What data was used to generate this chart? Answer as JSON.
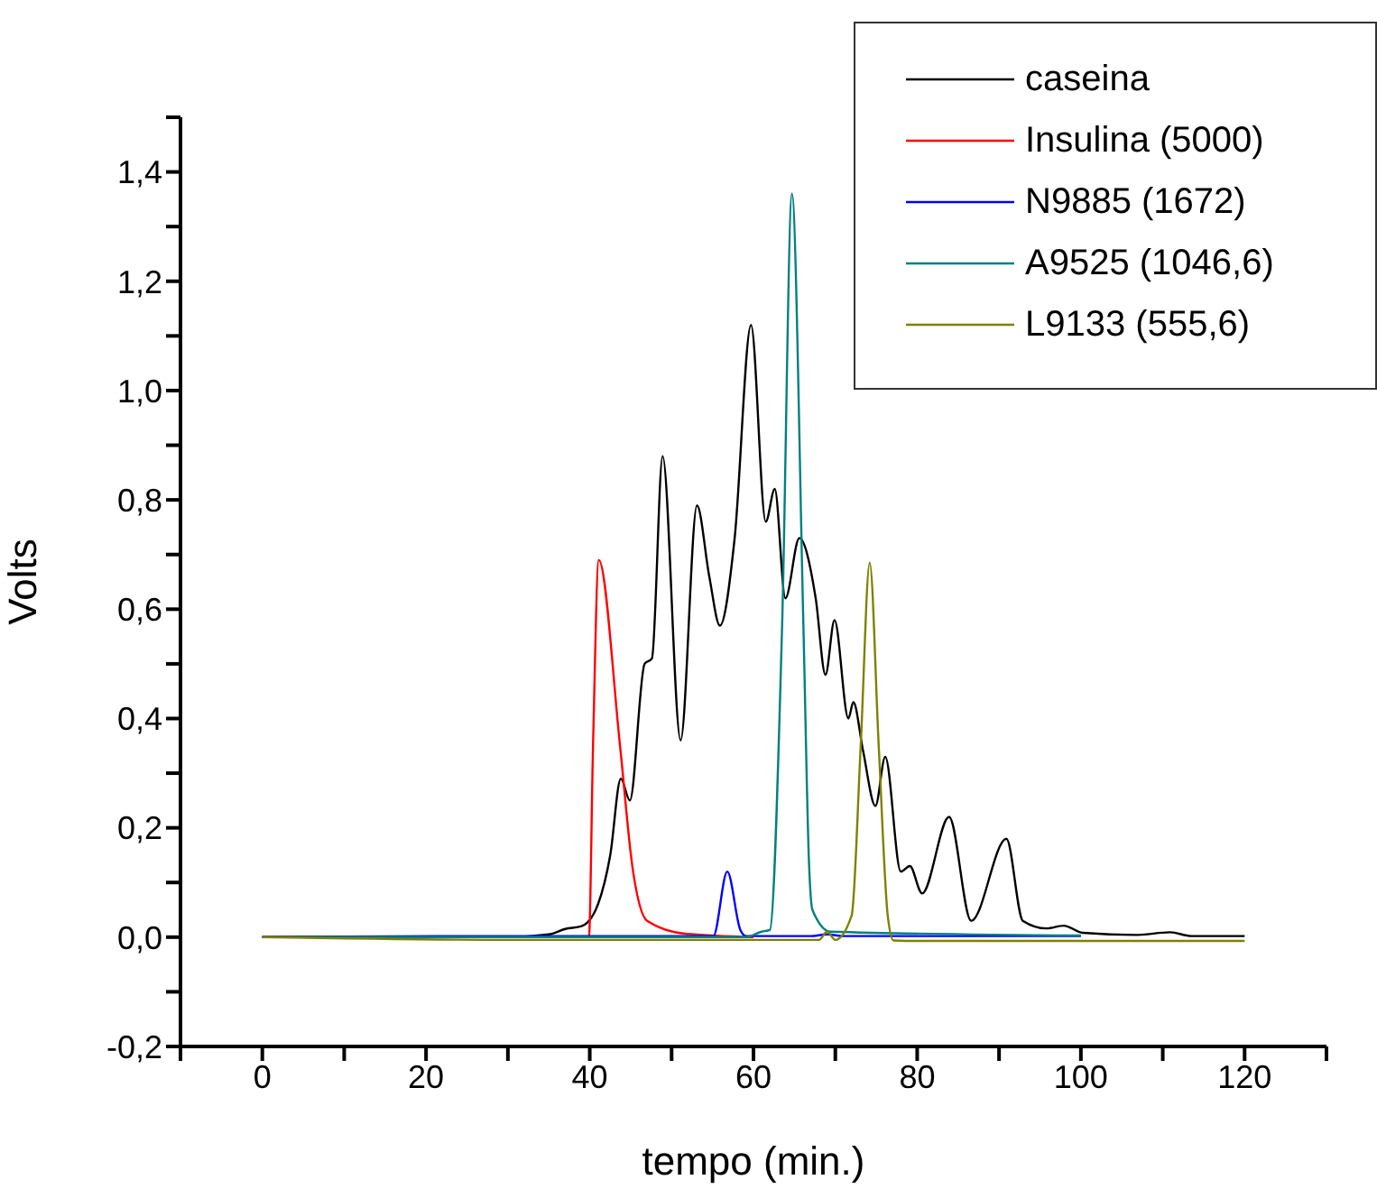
{
  "chart_data": {
    "type": "line",
    "xlabel": "tempo (min.)",
    "ylabel": "Volts",
    "xlim": [
      -10,
      130
    ],
    "ylim": [
      -0.2,
      1.5
    ],
    "xticks": [
      {
        "value": -10,
        "label": null
      },
      0,
      {
        "value": 10,
        "label": null
      },
      20,
      {
        "value": 30,
        "label": null
      },
      40,
      {
        "value": 50,
        "label": null
      },
      60,
      {
        "value": 70,
        "label": null
      },
      80,
      {
        "value": 90,
        "label": null
      },
      100,
      {
        "value": 110,
        "label": null
      },
      120,
      {
        "value": 130,
        "label": null
      }
    ],
    "yticks": [
      {
        "value": -0.2,
        "label": "-0,2"
      },
      {
        "value": -0.1,
        "label": null
      },
      {
        "value": 0,
        "label": "0,0"
      },
      {
        "value": 0.1,
        "label": null
      },
      {
        "value": 0.2,
        "label": "0,2"
      },
      {
        "value": 0.3,
        "label": null
      },
      {
        "value": 0.4,
        "label": "0,4"
      },
      {
        "value": 0.5,
        "label": null
      },
      {
        "value": 0.6,
        "label": "0,6"
      },
      {
        "value": 0.7,
        "label": null
      },
      {
        "value": 0.8,
        "label": "0,8"
      },
      {
        "value": 0.9,
        "label": null
      },
      {
        "value": 1.0,
        "label": "1,0"
      },
      {
        "value": 1.1,
        "label": null
      },
      {
        "value": 1.2,
        "label": "1,2"
      },
      {
        "value": 1.3,
        "label": null
      },
      {
        "value": 1.4,
        "label": "1,4"
      },
      {
        "value": 1.5,
        "label": null
      }
    ],
    "grid": false,
    "legend": "top right",
    "marker": "none",
    "line_style": "solid",
    "series": [
      {
        "name": "caseina",
        "color": "#000000",
        "x": [
          0,
          30,
          35,
          37,
          39,
          41,
          42.5,
          43.8,
          44.9,
          46.7,
          47.6,
          48.9,
          51.1,
          53.1,
          54.6,
          55.9,
          57.7,
          59.7,
          61.5,
          62.6,
          63.9,
          65.6,
          67.6,
          68.8,
          69.9,
          71.6,
          72.2,
          73.4,
          74.9,
          76.1,
          78.0,
          79.1,
          80.6,
          83.9,
          86.6,
          90.9,
          92.9,
          95.8,
          97.9,
          100.2,
          106.8,
          110.9,
          113.5,
          120
        ],
        "values": [
          0,
          0,
          0.005,
          0.015,
          0.02,
          0.06,
          0.15,
          0.29,
          0.25,
          0.5,
          0.51,
          0.88,
          0.36,
          0.79,
          0.66,
          0.57,
          0.73,
          1.12,
          0.76,
          0.82,
          0.62,
          0.73,
          0.62,
          0.48,
          0.58,
          0.4,
          0.43,
          0.34,
          0.24,
          0.33,
          0.12,
          0.13,
          0.08,
          0.22,
          0.03,
          0.18,
          0.03,
          0.016,
          0.021,
          0.008,
          0.004,
          0.009,
          0.002,
          0.002
        ]
      },
      {
        "name": "Insulina (5000)",
        "color": "#ff0000",
        "x": [
          0,
          39.9,
          40.4,
          41.1,
          43.7,
          45.2,
          47,
          51.8,
          60
        ],
        "values": [
          0,
          0,
          0.35,
          0.69,
          0.35,
          0.13,
          0.03,
          0.006,
          0
        ]
      },
      {
        "name": "N9885 (1672)",
        "color": "#0000ff",
        "x": [
          0,
          30,
          55.1,
          56.8,
          58.4,
          59.1,
          67,
          69,
          71,
          100
        ],
        "values": [
          0,
          0.002,
          0.002,
          0.12,
          0.013,
          0.002,
          0.002,
          0.005,
          0.002,
          0.002
        ]
      },
      {
        "name": "A9525 (1046,6)",
        "color": "#008080",
        "x": [
          0,
          59,
          61,
          62,
          63.5,
          64.7,
          66.1,
          66.8,
          67.2,
          69.4,
          100
        ],
        "values": [
          0,
          0,
          0.01,
          0.013,
          0.57,
          1.36,
          0.57,
          0.13,
          0.05,
          0.01,
          0.003
        ]
      },
      {
        "name": "L9133 (555,6)",
        "color": "#808000",
        "x": [
          0,
          30,
          68,
          69,
          70,
          72,
          73.1,
          74.2,
          75.3,
          76.4,
          77.1,
          80,
          120
        ],
        "values": [
          0,
          -0.005,
          -0.005,
          0.01,
          -0.005,
          0.04,
          0.35,
          0.685,
          0.35,
          0.04,
          -0.006,
          -0.007,
          -0.007
        ]
      }
    ]
  }
}
